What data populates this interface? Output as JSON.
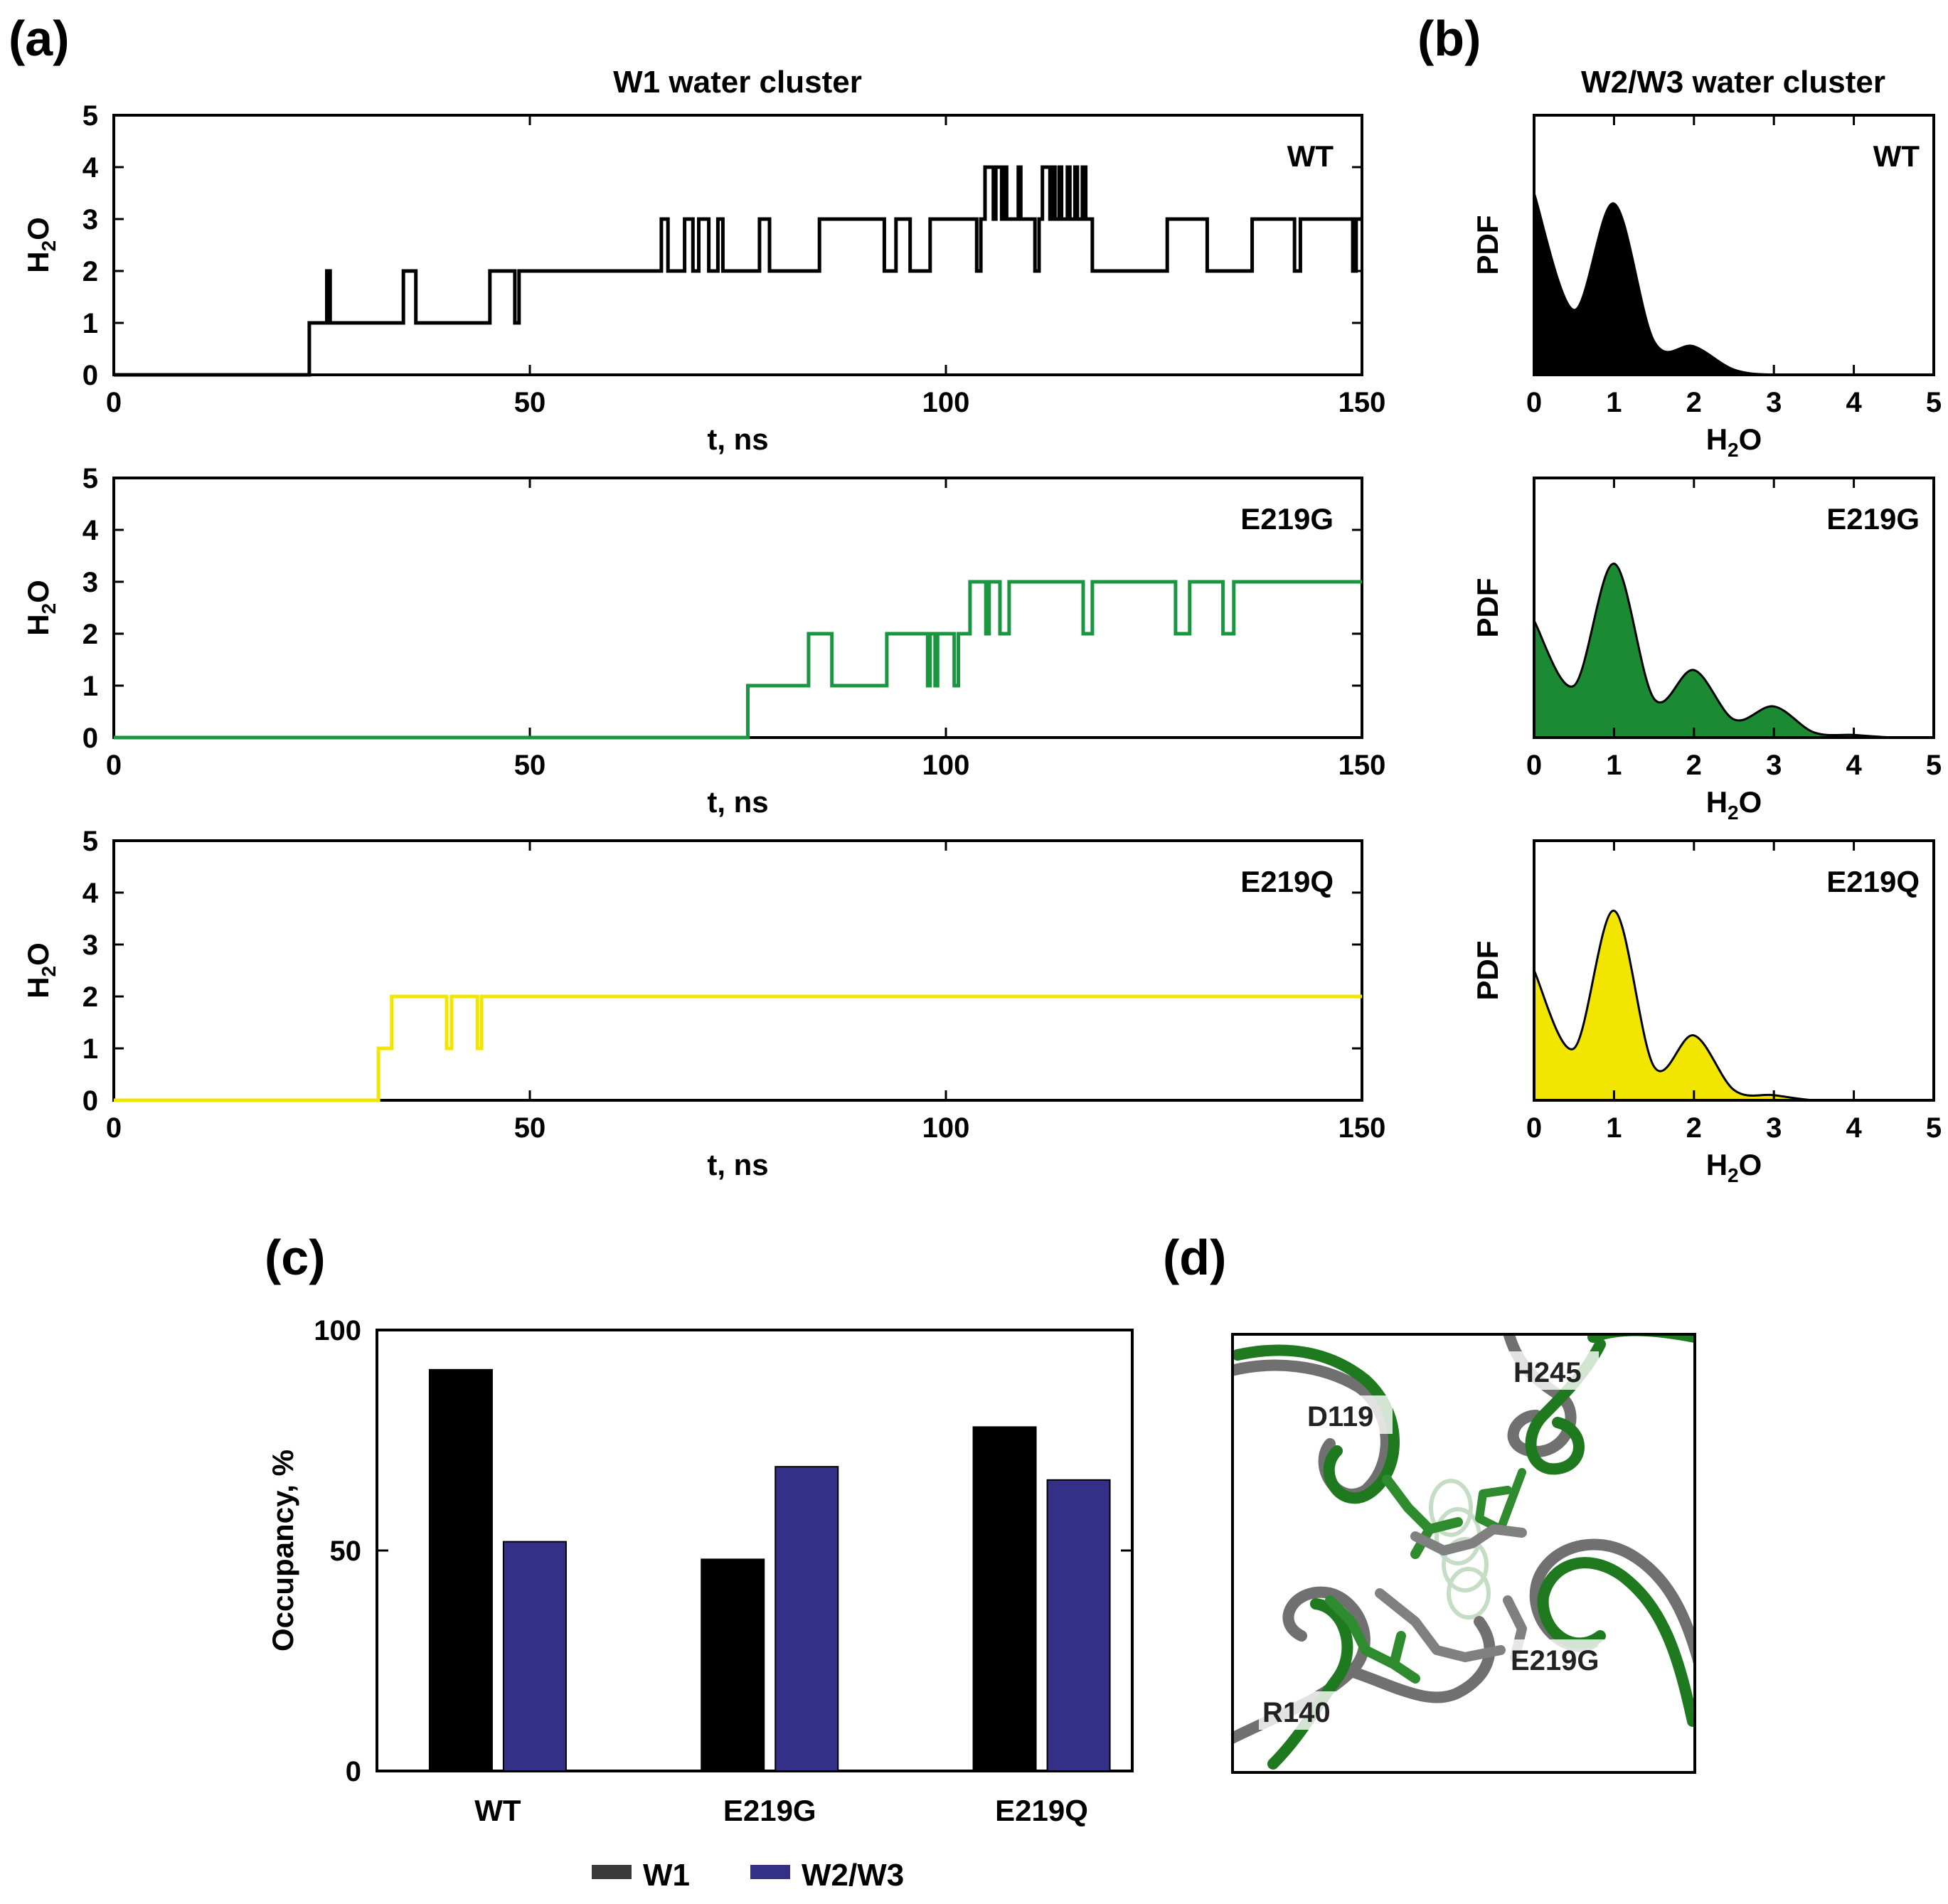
{
  "figure": {
    "panel_labels": [
      "(a)",
      "(b)",
      "(c)",
      "(d)"
    ],
    "title_a": "W1 water cluster",
    "title_b": "W2/W3 water cluster"
  },
  "colors": {
    "WT": "#000000",
    "E219G": "#1a9641",
    "E219Q": "#f2e600",
    "pdf_E219G": "#1b8a32",
    "W1": "#000000",
    "W2W3": "#353087"
  },
  "chart_data": [
    {
      "type": "line",
      "panel": "a",
      "step": true,
      "title": "W1 water cluster",
      "xlabel": "t, ns",
      "ylabel": "H2O",
      "xlim": [
        0,
        150
      ],
      "ylim": [
        0,
        5
      ],
      "xticks": [
        0,
        50,
        100,
        150
      ],
      "yticks": [
        0,
        1,
        2,
        3,
        4,
        5
      ],
      "series": [
        {
          "name": "WT",
          "x": [
            0,
            23.5,
            23.5,
            25.6,
            25.6,
            26.0,
            26.0,
            34.8,
            34.8,
            36.3,
            36.3,
            45.2,
            45.2,
            48.2,
            48.2,
            48.7,
            48.7,
            65.8,
            65.8,
            66.6,
            66.6,
            68.6,
            68.6,
            69.6,
            69.6,
            70.3,
            70.3,
            71.5,
            71.5,
            72.6,
            72.6,
            73.2,
            73.2,
            77.6,
            77.6,
            78.8,
            78.8,
            84.8,
            84.8,
            92.6,
            92.6,
            94.0,
            94.0,
            95.7,
            95.7,
            98.1,
            98.1,
            103.7,
            103.7,
            104.2,
            104.2,
            104.7,
            104.7,
            105.7,
            105.7,
            106.0,
            106.0,
            106.7,
            106.7,
            107.0,
            107.0,
            107.3,
            107.3,
            108.7,
            108.7,
            109.0,
            109.0,
            110.7,
            110.7,
            111.2,
            111.2,
            111.6,
            111.6,
            112.5,
            112.5,
            112.8,
            112.8,
            113.1,
            113.1,
            113.6,
            113.6,
            113.9,
            113.9,
            114.6,
            114.6,
            114.9,
            114.9,
            115.5,
            115.5,
            115.8,
            115.8,
            116.4,
            116.4,
            116.8,
            116.8,
            117.6,
            117.6,
            126.6,
            126.6,
            131.4,
            131.4,
            136.8,
            136.8,
            141.9,
            141.9,
            142.6,
            142.6,
            148.9,
            148.9,
            149.3,
            149.3,
            150
          ],
          "y": [
            0,
            0,
            1,
            1,
            2,
            2,
            1,
            1,
            2,
            2,
            1,
            1,
            2,
            2,
            1,
            1,
            2,
            2,
            3,
            3,
            2,
            2,
            3,
            3,
            2,
            2,
            3,
            3,
            2,
            2,
            3,
            3,
            2,
            2,
            3,
            3,
            2,
            2,
            3,
            3,
            2,
            2,
            3,
            3,
            2,
            2,
            3,
            3,
            2,
            2,
            3,
            3,
            4,
            4,
            3,
            3,
            4,
            4,
            3,
            3,
            4,
            4,
            3,
            3,
            4,
            4,
            3,
            3,
            2,
            2,
            3,
            3,
            4,
            4,
            3,
            3,
            4,
            4,
            3,
            3,
            4,
            4,
            3,
            3,
            4,
            4,
            3,
            3,
            4,
            4,
            3,
            3,
            4,
            4,
            3,
            3,
            2,
            2,
            3,
            3,
            2,
            2,
            3,
            3,
            2,
            2,
            3,
            3,
            2,
            2,
            3,
            3
          ]
        },
        {
          "name": "E219G",
          "x": [
            0,
            76.2,
            76.2,
            83.5,
            83.5,
            86.3,
            86.3,
            92.9,
            92.9,
            97.8,
            97.8,
            98.1,
            98.1,
            98.7,
            98.7,
            99.0,
            99.0,
            101.0,
            101.0,
            101.5,
            101.5,
            102.9,
            102.9,
            104.8,
            104.8,
            105.2,
            105.2,
            106.5,
            106.5,
            107.6,
            107.6,
            116.5,
            116.5,
            117.6,
            117.6,
            127.6,
            127.6,
            129.3,
            129.3,
            133.3,
            133.3,
            134.6,
            134.6,
            150
          ],
          "y": [
            0,
            0,
            1,
            1,
            2,
            2,
            1,
            1,
            2,
            2,
            1,
            1,
            2,
            2,
            1,
            1,
            2,
            2,
            1,
            1,
            2,
            2,
            3,
            3,
            2,
            2,
            3,
            3,
            2,
            2,
            3,
            3,
            2,
            2,
            3,
            3,
            2,
            2,
            3,
            3,
            2,
            2,
            3,
            3
          ]
        },
        {
          "name": "E219Q",
          "x": [
            0,
            31.8,
            31.8,
            33.4,
            33.4,
            40.0,
            40.0,
            40.6,
            40.6,
            43.7,
            43.7,
            44.2,
            44.2,
            150
          ],
          "y": [
            0,
            0,
            1,
            1,
            2,
            2,
            1,
            1,
            2,
            2,
            1,
            1,
            2,
            2
          ]
        }
      ]
    },
    {
      "type": "area",
      "panel": "b",
      "title": "W2/W3 water cluster",
      "xlabel": "H2O",
      "ylabel": "PDF",
      "xlim": [
        0,
        5
      ],
      "xticks": [
        0,
        1,
        2,
        3,
        4,
        5
      ],
      "series": [
        {
          "name": "WT",
          "x": [
            0,
            0.5,
            1,
            1.5,
            2,
            2.5,
            3,
            3.5,
            4,
            4.5,
            5
          ],
          "y": [
            0.7,
            0.25,
            0.66,
            0.13,
            0.11,
            0.02,
            0.0,
            0.0,
            0.0,
            0.0,
            0.0
          ]
        },
        {
          "name": "E219G",
          "x": [
            0,
            0.5,
            1,
            1.5,
            2,
            2.5,
            3,
            3.5,
            4,
            4.5,
            5
          ],
          "y": [
            0.45,
            0.2,
            0.67,
            0.15,
            0.26,
            0.07,
            0.12,
            0.02,
            0.01,
            0.0,
            0.0
          ]
        },
        {
          "name": "E219Q",
          "x": [
            0,
            0.5,
            1,
            1.5,
            2,
            2.5,
            3,
            3.5,
            4,
            4.5,
            5
          ],
          "y": [
            0.5,
            0.2,
            0.73,
            0.13,
            0.25,
            0.04,
            0.02,
            0.0,
            0.0,
            0.0,
            0.0
          ]
        }
      ]
    },
    {
      "type": "bar",
      "panel": "c",
      "categories": [
        "WT",
        "E219G",
        "E219Q"
      ],
      "ylabel": "Occupancy, %",
      "ylim": [
        0,
        100
      ],
      "yticks": [
        0,
        50,
        100
      ],
      "series": [
        {
          "name": "W1",
          "values": [
            91,
            48,
            78
          ]
        },
        {
          "name": "W2/W3",
          "values": [
            52,
            69,
            66
          ]
        }
      ],
      "legend_position": "bottom"
    }
  ],
  "panel_d": {
    "residue_labels": [
      "H245",
      "D119",
      "E219G",
      "R140"
    ]
  }
}
